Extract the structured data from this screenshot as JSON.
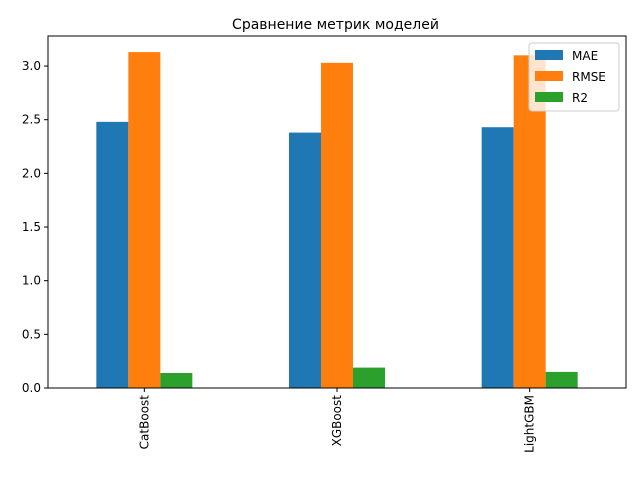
{
  "chart_data": {
    "type": "bar",
    "title": "Сравнение метрик моделей",
    "xlabel": "",
    "ylabel": "",
    "categories": [
      "CatBoost",
      "XGBoost",
      "LightGBM"
    ],
    "series": [
      {
        "name": "MAE",
        "color": "#1f77b4",
        "values": [
          2.48,
          2.38,
          2.43
        ]
      },
      {
        "name": "RMSE",
        "color": "#ff7f0e",
        "values": [
          3.13,
          3.03,
          3.1
        ]
      },
      {
        "name": "R2",
        "color": "#2ca02c",
        "values": [
          0.14,
          0.19,
          0.15
        ]
      }
    ],
    "ylim": [
      0,
      3.28
    ],
    "yticks": [
      0.0,
      0.5,
      1.0,
      1.5,
      2.0,
      2.5,
      3.0
    ],
    "ytick_labels": [
      "0.0",
      "0.5",
      "1.0",
      "1.5",
      "2.0",
      "2.5",
      "3.0"
    ],
    "legend_position": "upper-right",
    "grid": false,
    "x_tick_label_rotation": "vertical"
  }
}
